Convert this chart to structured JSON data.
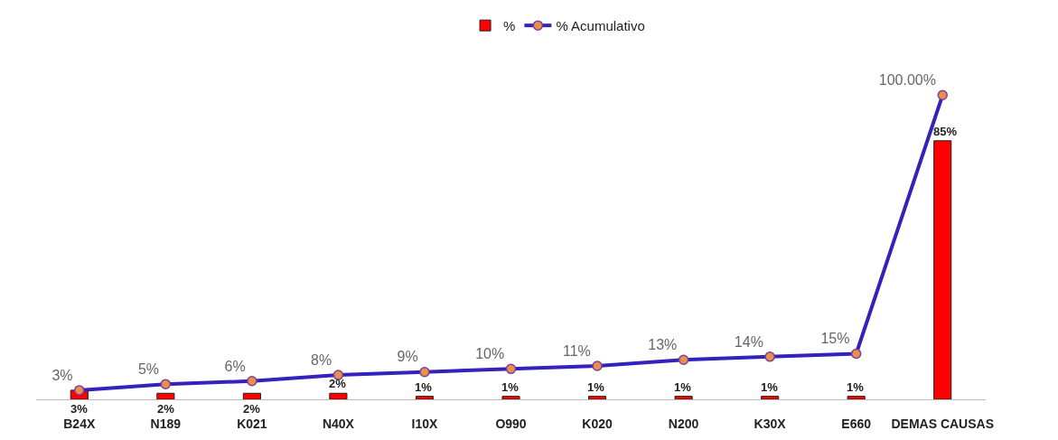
{
  "chart_data": {
    "type": "bar",
    "categories": [
      "B24X",
      "N189",
      "K021",
      "N40X",
      "I10X",
      "O990",
      "K020",
      "N200",
      "K30X",
      "E660",
      "DEMAS CAUSAS"
    ],
    "series": [
      {
        "name": "%",
        "color": "#ff0000",
        "values": [
          3,
          2,
          2,
          2,
          1,
          1,
          1,
          1,
          1,
          1,
          85
        ],
        "value_labels": [
          "3%",
          "2%",
          "2%",
          "2%",
          "1%",
          "1%",
          "1%",
          "1%",
          "1%",
          "1%",
          "85%"
        ]
      },
      {
        "name": "% Acumulativo",
        "type": "line",
        "color": "#3322bb",
        "values": [
          3,
          5,
          6,
          8,
          9,
          10,
          11,
          13,
          14,
          15,
          100
        ],
        "value_labels": [
          "3%",
          "5%",
          "6%",
          "8%",
          "9%",
          "10%",
          "11%",
          "13%",
          "14%",
          "15%",
          "100.00%"
        ]
      }
    ],
    "tick_labels": "x",
    "grid": false,
    "legend": "top",
    "marker": "circle",
    "line_style": "solid"
  }
}
